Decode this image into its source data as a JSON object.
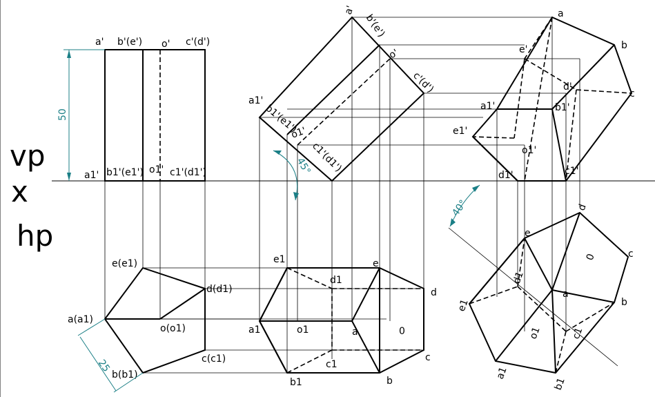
{
  "ref_labels": {
    "vp": "vp",
    "x": "x",
    "hp": "hp"
  },
  "dimensions": {
    "height": "50",
    "side": "25",
    "tilt_angle": "45°",
    "rotation_angle": "40°"
  },
  "front_view_1": {
    "a_top": "a'",
    "be_top": "b'(e')",
    "o_top": "o'",
    "cd_top": "c'(d')",
    "a_bottom": "a1'",
    "be_bottom": "b1'(e1')",
    "o_bottom": "o1'",
    "cd_bottom": "c1'(d1')"
  },
  "top_view_1": {
    "e": "e(e1)",
    "d": "d(d1)",
    "a": "a(a1)",
    "o": "o(o1)",
    "c": "c(c1)",
    "b": "b(b1)"
  },
  "front_view_2": {
    "a": "a'",
    "be": "b'(e')",
    "o": "o'",
    "cd": "c'(d')",
    "a1": "a1'",
    "be1": "b1'(e1')",
    "o1": "o1'",
    "cd1": "c1'(d1')"
  },
  "top_view_2": {
    "e1": "e1",
    "e": "e",
    "d1": "d1",
    "d": "d",
    "a1": "a1",
    "o1": "o1",
    "a": "a",
    "o": "0",
    "c": "c",
    "c1": "c1",
    "b1": "b1",
    "b": "b"
  },
  "front_view_3": {
    "a": "a",
    "b": "b",
    "c": "c",
    "e": "e'",
    "d": "d'",
    "a1": "a1'",
    "b1": "b1'",
    "e1": "e1'",
    "o1": "o1'",
    "d1": "d1'",
    "c1": "c1'"
  },
  "top_view_3": {
    "d": "d",
    "e": "e",
    "c": "c",
    "o": "0",
    "d1": "d1",
    "e1": "e1",
    "a": "a",
    "b": "b",
    "o1": "o1",
    "c1": "c1",
    "a1": "a1",
    "b1": "b1"
  }
}
